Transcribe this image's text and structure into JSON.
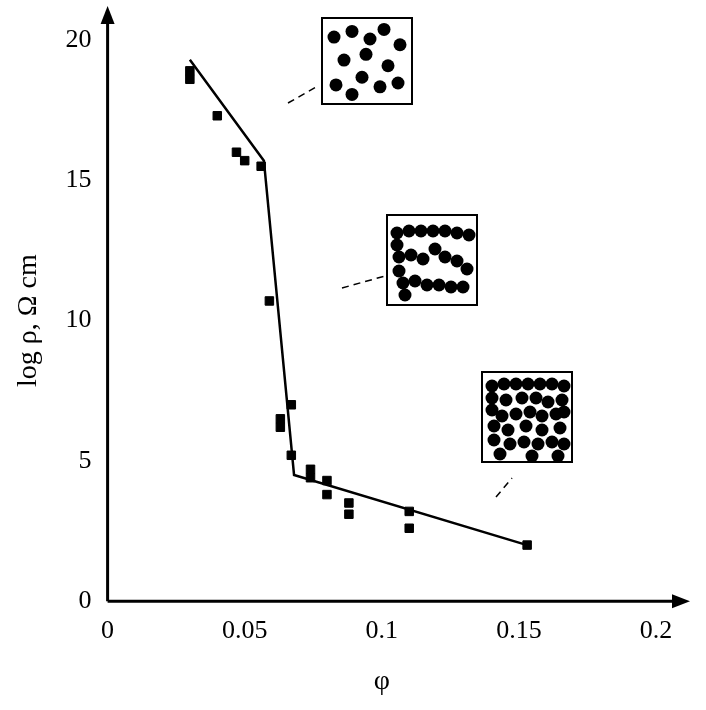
{
  "chart_data": {
    "type": "scatter",
    "x_label": "φ",
    "y_label": "log ρ, Ω cm",
    "xlim": [
      0,
      0.2
    ],
    "ylim": [
      0,
      20
    ],
    "xticks": [
      0,
      0.05,
      0.1,
      0.15,
      0.2
    ],
    "yticks": [
      0,
      5,
      10,
      15,
      20
    ],
    "grid": false,
    "series": [
      {
        "type": "scatter",
        "color": "#000000",
        "marker": "square",
        "x": [
          0.03,
          0.03,
          0.04,
          0.047,
          0.05,
          0.056,
          0.059,
          0.063,
          0.063,
          0.067,
          0.067,
          0.074,
          0.074,
          0.08,
          0.08,
          0.088,
          0.088,
          0.11,
          0.11,
          0.153
        ],
        "values": [
          18.9,
          18.6,
          17.3,
          16.0,
          15.7,
          15.5,
          10.7,
          6.5,
          6.2,
          7.0,
          5.2,
          4.7,
          4.4,
          4.3,
          3.8,
          3.5,
          3.1,
          3.2,
          2.6,
          2.0
        ]
      },
      {
        "type": "line",
        "color": "#000000",
        "marker": "none",
        "line_style": "solid",
        "x": [
          0.03,
          0.057,
          0.068,
          0.153
        ],
        "values": [
          19.3,
          15.7,
          4.5,
          2.0
        ]
      }
    ]
  }
}
